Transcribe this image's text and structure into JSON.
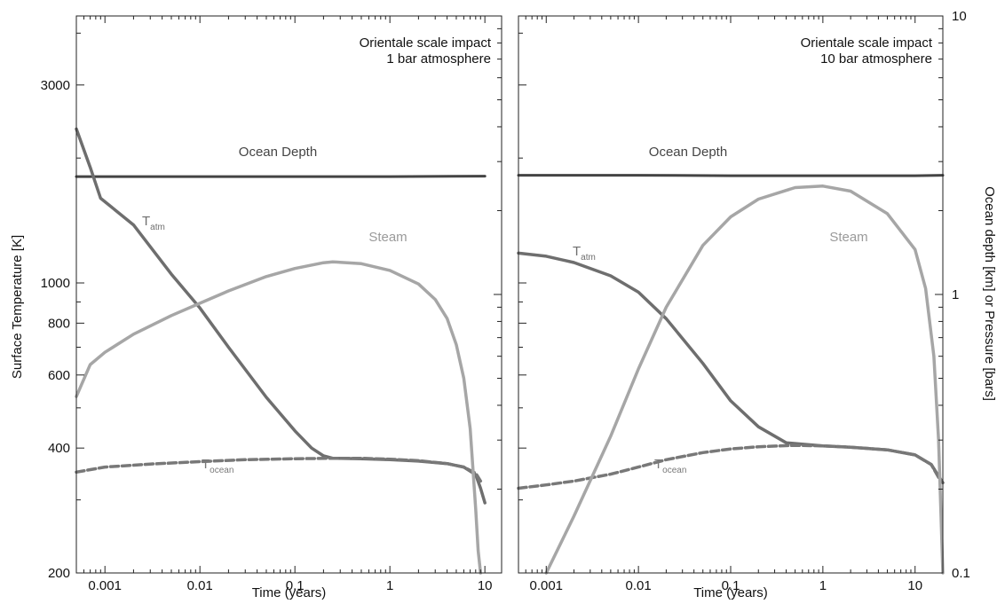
{
  "chart_data": [
    {
      "type": "line",
      "xscale": "log",
      "yscale": "log",
      "xlim": [
        0.0005,
        15
      ],
      "ylim": [
        200,
        4400
      ],
      "xlabel": "Time (years)",
      "ylabel": "Surface Temperature [K]",
      "xticks": [
        {
          "v": 0.001,
          "label": "0.001"
        },
        {
          "v": 0.01,
          "label": "0.01"
        },
        {
          "v": 0.1,
          "label": "0.1"
        },
        {
          "v": 1,
          "label": "1"
        },
        {
          "v": 10,
          "label": "10"
        }
      ],
      "yticks": [
        {
          "v": 200,
          "label": "200"
        },
        {
          "v": 400,
          "label": "400"
        },
        {
          "v": 600,
          "label": "600"
        },
        {
          "v": 800,
          "label": "800"
        },
        {
          "v": 1000,
          "label": "1000"
        },
        {
          "v": 3000,
          "label": "3000"
        }
      ],
      "note_lines": [
        "Orientale scale impact",
        "1 bar atmosphere"
      ],
      "labels": {
        "ocean": "Ocean Depth",
        "steam": "Steam",
        "tatm_main": "T",
        "tatm_sub": "atm",
        "tocean_main": "T",
        "tocean_sub": "ocean"
      },
      "series": [
        {
          "id": "ocean_depth",
          "axis": "right",
          "color": "#444444",
          "dash": "solid",
          "x": [
            0.0005,
            0.001,
            0.01,
            0.1,
            1,
            10
          ],
          "y": [
            2.65,
            2.65,
            2.65,
            2.65,
            2.65,
            2.66
          ]
        },
        {
          "id": "t_atm",
          "axis": "left",
          "color": "#6e6e6e",
          "dash": "solid",
          "x": [
            0.0005,
            0.0007,
            0.0009,
            0.002,
            0.005,
            0.01,
            0.02,
            0.05,
            0.1,
            0.15,
            0.2,
            0.25,
            0.5,
            1,
            2,
            4,
            6,
            8,
            9,
            10
          ],
          "y": [
            2350,
            1900,
            1600,
            1380,
            1050,
            870,
            700,
            530,
            440,
            400,
            383,
            378,
            377,
            375,
            372,
            367,
            360,
            345,
            320,
            295
          ]
        },
        {
          "id": "t_ocean",
          "axis": "left",
          "color": "#787878",
          "dash": "dashed",
          "x": [
            0.0005,
            0.001,
            0.003,
            0.01,
            0.03,
            0.1,
            0.25,
            0.5,
            1,
            2,
            4,
            6,
            8,
            9
          ],
          "y": [
            350,
            360,
            366,
            371,
            375,
            377,
            378,
            378,
            376,
            373,
            367,
            360,
            348,
            333
          ]
        },
        {
          "id": "steam",
          "axis": "right",
          "color": "#a6a6a6",
          "dash": "solid",
          "x": [
            0.0005,
            0.0007,
            0.001,
            0.002,
            0.005,
            0.01,
            0.02,
            0.05,
            0.1,
            0.2,
            0.25,
            0.5,
            1,
            2,
            3,
            4,
            5,
            6,
            7,
            8,
            8.5,
            9
          ],
          "y": [
            0.43,
            0.56,
            0.62,
            0.72,
            0.84,
            0.93,
            1.03,
            1.16,
            1.24,
            1.3,
            1.31,
            1.29,
            1.22,
            1.09,
            0.96,
            0.82,
            0.66,
            0.5,
            0.33,
            0.17,
            0.12,
            0.1
          ]
        }
      ]
    },
    {
      "type": "line",
      "xscale": "log",
      "yscale": "log",
      "xlim": [
        0.0005,
        20
      ],
      "ylim": [
        0.1,
        10
      ],
      "xlabel": "Time (years)",
      "ylabel": "Ocean depth [km] or Pressure [bars]",
      "xticks": [
        {
          "v": 0.001,
          "label": "0.001"
        },
        {
          "v": 0.01,
          "label": "0.01"
        },
        {
          "v": 0.1,
          "label": "0.1"
        },
        {
          "v": 1,
          "label": "1"
        },
        {
          "v": 10,
          "label": "10"
        }
      ],
      "yticks": [
        {
          "v": 0.1,
          "label": "0.1"
        },
        {
          "v": 1,
          "label": "1"
        },
        {
          "v": 10,
          "label": "10"
        }
      ],
      "note_lines": [
        "Orientale scale impact",
        "10 bar atmosphere"
      ],
      "labels": {
        "ocean": "Ocean Depth",
        "steam": "Steam",
        "tatm_main": "T",
        "tatm_sub": "atm",
        "tocean_main": "T",
        "tocean_sub": "ocean"
      },
      "series": [
        {
          "id": "ocean_depth",
          "axis": "right",
          "color": "#444444",
          "dash": "solid",
          "x": [
            0.0005,
            0.001,
            0.01,
            0.1,
            1,
            10,
            20
          ],
          "y": [
            2.68,
            2.68,
            2.68,
            2.67,
            2.67,
            2.67,
            2.68
          ]
        },
        {
          "id": "t_atm",
          "axis": "left",
          "color": "#6e6e6e",
          "dash": "solid",
          "x": [
            0.0005,
            0.001,
            0.002,
            0.005,
            0.01,
            0.02,
            0.05,
            0.1,
            0.2,
            0.4,
            1,
            2,
            5,
            10,
            15,
            20
          ],
          "y": [
            1180,
            1160,
            1120,
            1040,
            950,
            820,
            640,
            520,
            450,
            412,
            405,
            402,
            396,
            385,
            365,
            330
          ]
        },
        {
          "id": "t_ocean",
          "axis": "left",
          "color": "#787878",
          "dash": "dashed",
          "x": [
            0.0005,
            0.001,
            0.002,
            0.005,
            0.01,
            0.02,
            0.05,
            0.1,
            0.2,
            0.5,
            1,
            2,
            5,
            10,
            15,
            18
          ],
          "y": [
            320,
            326,
            333,
            346,
            360,
            375,
            390,
            398,
            403,
            406,
            405,
            402,
            396,
            385,
            365,
            340
          ]
        },
        {
          "id": "steam",
          "axis": "right",
          "color": "#a6a6a6",
          "dash": "solid",
          "x": [
            0.001,
            0.002,
            0.005,
            0.01,
            0.02,
            0.05,
            0.1,
            0.2,
            0.5,
            1,
            2,
            5,
            10,
            13,
            16,
            18,
            20
          ],
          "y": [
            0.1,
            0.16,
            0.31,
            0.54,
            0.9,
            1.5,
            1.9,
            2.2,
            2.42,
            2.45,
            2.35,
            1.95,
            1.45,
            1.05,
            0.6,
            0.3,
            0.1
          ]
        }
      ]
    }
  ]
}
